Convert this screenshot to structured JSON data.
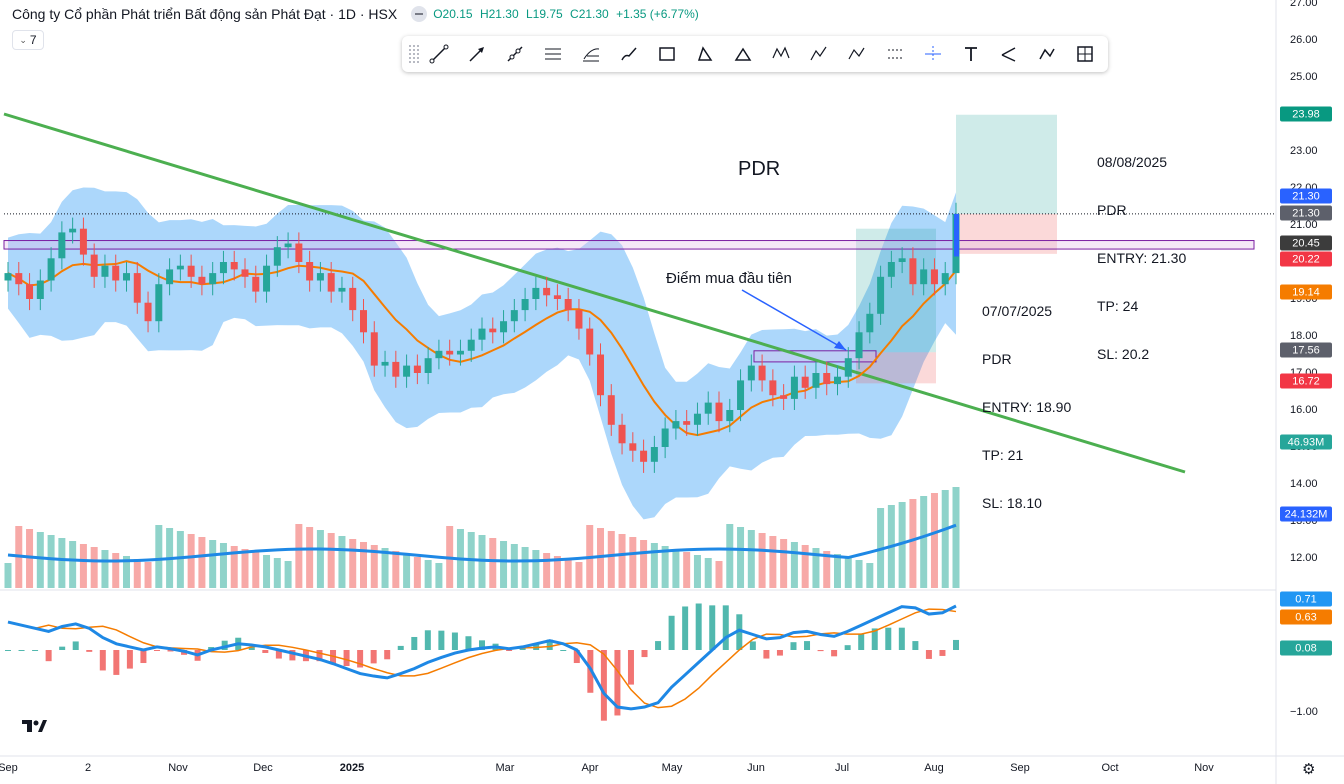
{
  "legend": {
    "title": "Công ty Cổ phần Phát triển Bất động sản Phát Đạt · 1D · HSX",
    "open": "O20.15",
    "high": "H21.30",
    "low": "L19.75",
    "close": "C21.30",
    "change": "+1.35 (+6.77%)",
    "indicator_count": "7"
  },
  "toolbar": {
    "tools": [
      "trend-line",
      "arrow",
      "ray",
      "parallel-channel",
      "fib-retracement",
      "brush",
      "rectangle",
      "triangle",
      "path",
      "xabcd-pattern",
      "elliott-wave",
      "abcd-pattern",
      "date-price-range",
      "crosshair",
      "text",
      "callout-line",
      "polyline",
      "long-position"
    ]
  },
  "price_axis": {
    "ticks": [
      "27.00",
      "26.00",
      "25.00",
      "24.00",
      "23.00",
      "22.00",
      "21.00",
      "20.00",
      "19.00",
      "18.00",
      "17.00",
      "16.00",
      "15.00",
      "14.00",
      "13.00",
      "12.00"
    ],
    "macd_ticks": [
      "−1.00"
    ],
    "badges": [
      {
        "text": "23.98",
        "color": "#089981"
      },
      {
        "text": "21.30",
        "color": "#2962ff"
      },
      {
        "text": "21.30",
        "color": "#5d606b"
      },
      {
        "text": "20.45",
        "color": "#3c3c3c"
      },
      {
        "text": "20.22",
        "color": "#f23645"
      },
      {
        "text": "19.14",
        "color": "#f57c00"
      },
      {
        "text": "17.56",
        "color": "#5d606b"
      },
      {
        "text": "16.72",
        "color": "#f23645"
      },
      {
        "text": "46.93M",
        "color": "#26a69a"
      },
      {
        "text": "24.132M",
        "color": "#2962ff"
      },
      {
        "text": "0.71",
        "color": "#2196f3"
      },
      {
        "text": "0.63",
        "color": "#f57c00"
      },
      {
        "text": "0.08",
        "color": "#26a69a"
      }
    ]
  },
  "time_axis": {
    "labels": [
      {
        "text": "Sep",
        "bold": false
      },
      {
        "text": "2",
        "bold": false
      },
      {
        "text": "Nov",
        "bold": false
      },
      {
        "text": "Dec",
        "bold": false
      },
      {
        "text": "2025",
        "bold": true
      },
      {
        "text": "Mar",
        "bold": false
      },
      {
        "text": "Apr",
        "bold": false
      },
      {
        "text": "May",
        "bold": false
      },
      {
        "text": "Jun",
        "bold": false
      },
      {
        "text": "Jul",
        "bold": false
      },
      {
        "text": "Aug",
        "bold": false
      },
      {
        "text": "Sep",
        "bold": false
      },
      {
        "text": "Oct",
        "bold": false
      },
      {
        "text": "Nov",
        "bold": false
      }
    ]
  },
  "annotations": {
    "title": "PDR",
    "callout": "Điểm mua đầu tiên",
    "trade1": {
      "date": "07/07/2025",
      "symbol": "PDR",
      "entry": "ENTRY: 18.90",
      "tp": "TP: 21",
      "sl": "SL: 18.10"
    },
    "trade2": {
      "date": "08/08/2025",
      "symbol": "PDR",
      "entry": "ENTRY: 21.30",
      "tp": "TP: 24",
      "sl": "SL: 20.2"
    }
  },
  "colors": {
    "up": "#26a69a",
    "down": "#ef5350",
    "up_volume": "#8fd3ca",
    "down_volume": "#f7a9a7",
    "bollinger_fill": "#90caf9",
    "ma": "#f57c00",
    "volume_ma": "#1e88e5",
    "trendline": "#4caf50",
    "macd": "#1e88e5",
    "signal": "#f57c00"
  },
  "chart_data": {
    "type": "candlestick",
    "symbol": "PDR",
    "interval": "1D",
    "exchange": "HSX",
    "last_bar": {
      "open": 20.15,
      "high": 21.3,
      "low": 19.75,
      "close": 21.3,
      "change": 1.35,
      "change_pct": 6.77
    },
    "key_levels": {
      "take_profit": 23.98,
      "last": 21.3,
      "resistance_box": 20.45,
      "stop_loss": 20.22,
      "ma": 19.14,
      "entry_box": 17.56,
      "stop_box": 16.72
    },
    "volume": {
      "last": "46.93M",
      "ma": "24.132M"
    },
    "macd": {
      "macd": 0.71,
      "signal": 0.63,
      "histogram": 0.08
    },
    "y_range": [
      11.5,
      27.0
    ],
    "close_path": [
      19.7,
      19.4,
      19.0,
      19.5,
      20.1,
      20.8,
      20.9,
      20.2,
      19.6,
      19.9,
      19.5,
      19.7,
      18.9,
      18.4,
      19.4,
      19.8,
      19.9,
      19.6,
      19.4,
      19.7,
      20.0,
      19.8,
      19.6,
      19.2,
      19.9,
      20.4,
      20.5,
      20.0,
      19.5,
      19.7,
      19.2,
      19.3,
      18.7,
      18.1,
      17.2,
      17.3,
      16.9,
      17.2,
      17.0,
      17.4,
      17.6,
      17.5,
      17.6,
      17.9,
      18.2,
      18.1,
      18.4,
      18.7,
      19.0,
      19.3,
      19.1,
      19.0,
      18.7,
      18.2,
      17.5,
      16.4,
      15.6,
      15.1,
      14.9,
      14.6,
      15.0,
      15.5,
      15.7,
      15.6,
      15.9,
      16.2,
      15.7,
      16.0,
      16.8,
      17.2,
      16.8,
      16.4,
      16.3,
      16.9,
      16.6,
      17.0,
      16.7,
      16.9,
      17.4,
      18.1,
      18.6,
      19.6,
      20.0,
      20.1,
      19.4,
      19.8,
      19.4,
      19.7,
      21.3
    ],
    "macd_path": [
      0.45,
      0.4,
      0.35,
      0.3,
      0.38,
      0.42,
      0.35,
      0.2,
      0.1,
      0.05,
      0.0,
      0.05,
      0.02,
      -0.02,
      -0.08,
      0.0,
      0.05,
      0.1,
      0.08,
      0.05,
      0.0,
      -0.05,
      -0.1,
      -0.15,
      -0.22,
      -0.3,
      -0.38,
      -0.42,
      -0.45,
      -0.38,
      -0.3,
      -0.2,
      -0.12,
      -0.05,
      0.0,
      0.03,
      0.05,
      0.02,
      0.05,
      0.1,
      0.15,
      0.1,
      0.0,
      -0.3,
      -0.7,
      -0.92,
      -0.95,
      -0.92,
      -0.85,
      -0.6,
      -0.4,
      -0.2,
      0.0,
      0.2,
      0.32,
      0.25,
      0.18,
      0.2,
      0.28,
      0.3,
      0.25,
      0.22,
      0.3,
      0.4,
      0.5,
      0.6,
      0.7,
      0.68,
      0.58,
      0.6,
      0.71
    ]
  }
}
